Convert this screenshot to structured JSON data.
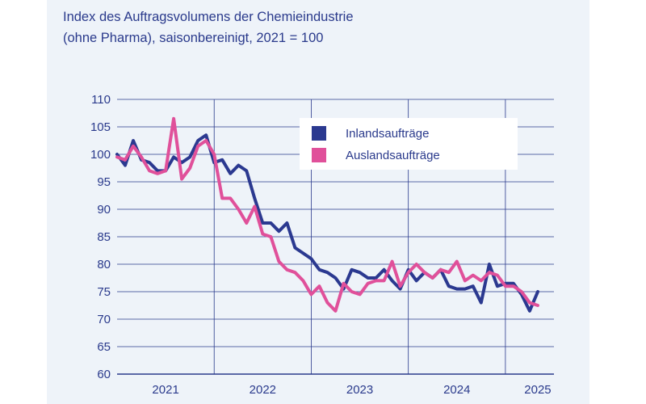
{
  "header": {
    "title_line1": "Index des Auftragsvolumens der Chemieindustrie",
    "title_line2": "(ohne Pharma), saisonbereinigt, 2021 = 100"
  },
  "colors": {
    "inland": "#2b3990",
    "ausland": "#e0509a",
    "grid": "#2a3a8c",
    "text": "#2a3a8c",
    "panel": "#eef3f9"
  },
  "chart_data": {
    "type": "line",
    "title": "Index des Auftragsvolumens der Chemieindustrie (ohne Pharma), saisonbereinigt, 2021 = 100",
    "xlabel": "",
    "ylabel": "",
    "ylim": [
      60,
      110
    ],
    "yticks": [
      "60",
      "65",
      "70",
      "75",
      "80",
      "85",
      "90",
      "95",
      "100",
      "105",
      "110"
    ],
    "xticks": [
      "2021",
      "2022",
      "2023",
      "2024",
      "2025"
    ],
    "x_start": "2021-01",
    "x_frequency": "monthly",
    "grid": true,
    "legend_position": "top-right",
    "series": [
      {
        "name": "Inlandsaufträge",
        "color": "#2b3990",
        "values": [
          100,
          98,
          102.5,
          99,
          98.5,
          97,
          97,
          99.5,
          98.5,
          99.5,
          102.5,
          103.5,
          98.5,
          99,
          96.5,
          98,
          97,
          92,
          87.5,
          87.5,
          86,
          87.5,
          83,
          82,
          81,
          79,
          78.5,
          77.5,
          75.5,
          79,
          78.5,
          77.5,
          77.5,
          79,
          77,
          75.5,
          79,
          77,
          78.5,
          77.5,
          79,
          76,
          75.5,
          75.5,
          76,
          73,
          80,
          76,
          76.5,
          76.5,
          74.5,
          71.5,
          75
        ]
      },
      {
        "name": "Auslandsaufträge",
        "color": "#e0509a",
        "values": [
          99.5,
          99,
          101.5,
          99.5,
          97,
          96.5,
          97,
          106.5,
          95.5,
          97.5,
          101.5,
          102.5,
          100,
          92,
          92,
          90,
          87.5,
          90.5,
          85.5,
          85,
          80.5,
          79,
          78.5,
          77,
          74.5,
          76,
          73,
          71.5,
          76.5,
          75,
          74.5,
          76.5,
          77,
          77,
          80.5,
          76,
          78.5,
          80,
          78.5,
          77.5,
          79,
          78.5,
          80.5,
          77,
          78,
          77,
          78.5,
          78,
          76,
          76,
          75,
          73,
          72.5
        ]
      }
    ]
  }
}
